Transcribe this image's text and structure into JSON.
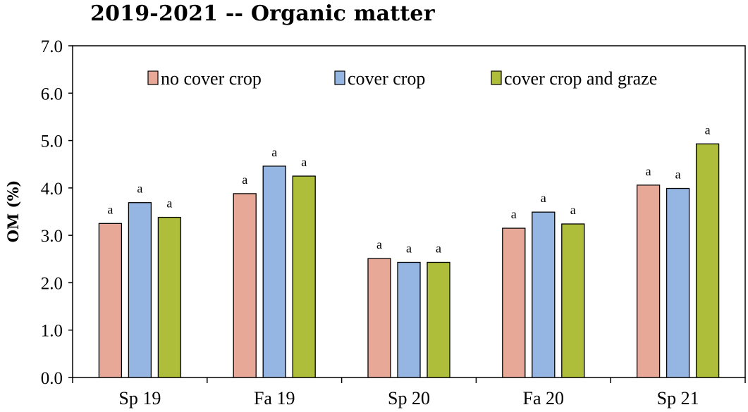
{
  "chart_data": {
    "type": "bar",
    "title": "2019-2021 -- Organic matter",
    "ylabel": "OM (%)",
    "xlabel": "",
    "ylim": [
      0,
      7
    ],
    "yticks": [
      "0.0",
      "1.0",
      "2.0",
      "3.0",
      "4.0",
      "5.0",
      "6.0",
      "7.0"
    ],
    "grid": false,
    "legend_position": "top",
    "categories": [
      "Sp 19",
      "Fa 19",
      "Sp 20",
      "Fa 20",
      "Sp 21"
    ],
    "series": [
      {
        "name": "no cover crop",
        "color": "#E8A898",
        "values": [
          3.25,
          3.88,
          2.51,
          3.15,
          4.06
        ],
        "labels": [
          "a",
          "a",
          "a",
          "a",
          "a"
        ]
      },
      {
        "name": "cover crop",
        "color": "#95B5E3",
        "values": [
          3.69,
          4.46,
          2.43,
          3.49,
          3.99
        ],
        "labels": [
          "a",
          "a",
          "a",
          "a",
          "a"
        ]
      },
      {
        "name": "cover crop and graze",
        "color": "#AEBE3B",
        "values": [
          3.38,
          4.25,
          2.43,
          3.24,
          4.93
        ],
        "labels": [
          "a",
          "a",
          "a",
          "a",
          "a"
        ]
      }
    ]
  }
}
